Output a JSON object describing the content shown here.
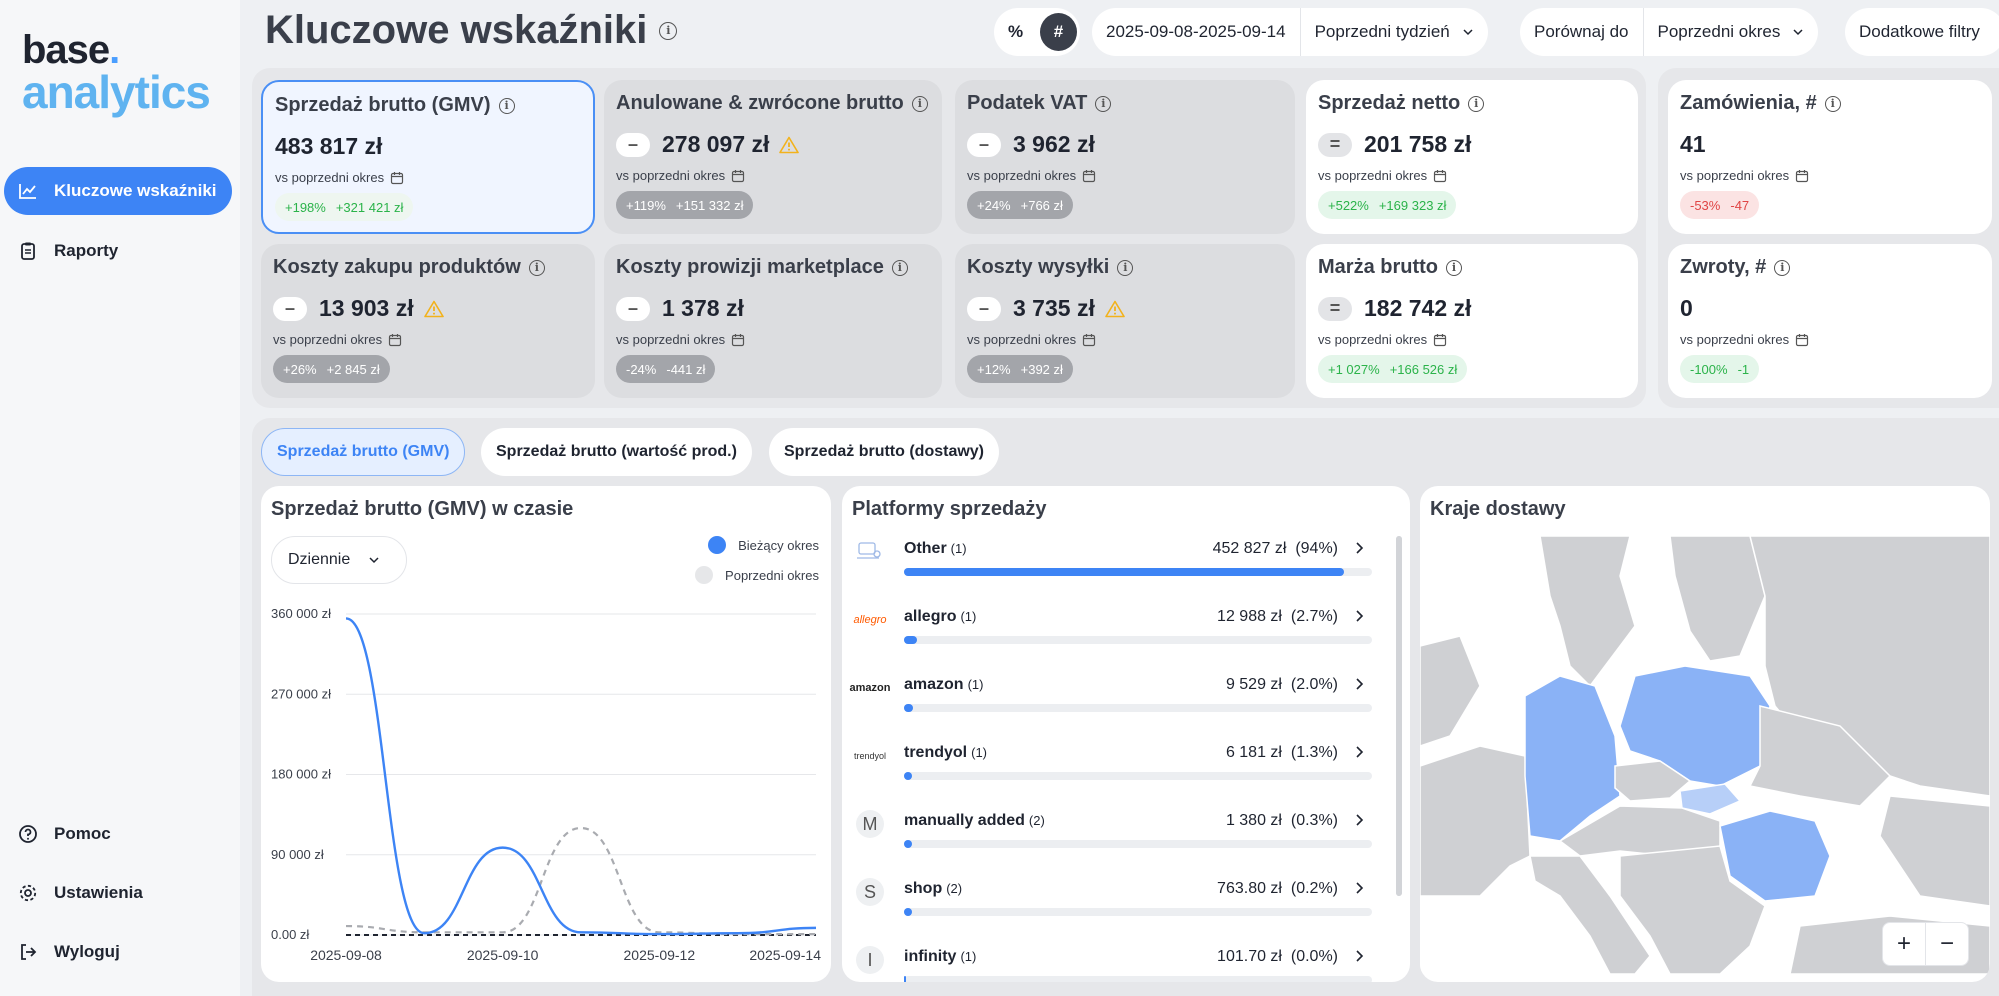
{
  "brand": {
    "line1": "base",
    "dot": ".",
    "line2": "analytics"
  },
  "sidebar": {
    "items": [
      {
        "label": "Kluczowe wskaźniki",
        "icon": "chart-line-icon",
        "active": true
      },
      {
        "label": "Raporty",
        "icon": "clipboard-icon"
      }
    ],
    "bottom": [
      {
        "label": "Pomoc",
        "icon": "help-icon"
      },
      {
        "label": "Ustawienia",
        "icon": "gear-icon"
      },
      {
        "label": "Wyloguj",
        "icon": "logout-icon"
      }
    ]
  },
  "header": {
    "title": "Kluczowe wskaźniki",
    "toggle": {
      "percent": "%",
      "hash": "#",
      "active": "hash"
    },
    "date_range": "2025-09-08-2025-09-14",
    "period": "Poprzedni tydzień",
    "compare_label": "Porównaj do",
    "compare_value": "Poprzedni okres",
    "more_filters": "Dodatkowe filtry"
  },
  "kpis": [
    {
      "title": "Sprzedaż brutto (GMV)",
      "value": "483 817 zł",
      "sign": "",
      "warn": false,
      "sub": "vs poprzedni okres",
      "pct": "+198%",
      "diff": "+321 421 zł",
      "tone": "green",
      "style": "selected"
    },
    {
      "title": "Anulowane & zwrócone brutto",
      "value": "278 097 zł",
      "sign": "–",
      "warn": true,
      "sub": "vs poprzedni okres",
      "pct": "+119%",
      "diff": "+151 332 zł",
      "tone": "grey",
      "style": "grey"
    },
    {
      "title": "Podatek VAT",
      "value": "3 962 zł",
      "sign": "–",
      "warn": false,
      "sub": "vs poprzedni okres",
      "pct": "+24%",
      "diff": "+766 zł",
      "tone": "grey",
      "style": "grey"
    },
    {
      "title": "Sprzedaż netto",
      "value": "201 758 zł",
      "sign": "=",
      "warn": false,
      "sub": "vs poprzedni okres",
      "pct": "+522%",
      "diff": "+169 323 zł",
      "tone": "green",
      "style": "white"
    },
    {
      "title": "Zamówienia, #",
      "value": "41",
      "sign": "",
      "warn": false,
      "sub": "vs poprzedni okres",
      "pct": "-53%",
      "diff": "-47",
      "tone": "red",
      "style": "white"
    },
    {
      "title": "Koszty zakupu produktów",
      "value": "13 903 zł",
      "sign": "–",
      "warn": true,
      "sub": "vs poprzedni okres",
      "pct": "+26%",
      "diff": "+2 845 zł",
      "tone": "grey",
      "style": "grey"
    },
    {
      "title": "Koszty prowizji marketplace",
      "value": "1 378 zł",
      "sign": "–",
      "warn": false,
      "sub": "vs poprzedni okres",
      "pct": "-24%",
      "diff": "-441 zł",
      "tone": "grey",
      "style": "grey"
    },
    {
      "title": "Koszty wysyłki",
      "value": "3 735 zł",
      "sign": "–",
      "warn": true,
      "sub": "vs poprzedni okres",
      "pct": "+12%",
      "diff": "+392 zł",
      "tone": "grey",
      "style": "grey"
    },
    {
      "title": "Marża brutto",
      "value": "182 742 zł",
      "sign": "=",
      "warn": false,
      "sub": "vs poprzedni okres",
      "pct": "+1 027%",
      "diff": "+166 526 zł",
      "tone": "green",
      "style": "white"
    },
    {
      "title": "Zwroty, #",
      "value": "0",
      "sign": "",
      "warn": false,
      "sub": "vs poprzedni okres",
      "pct": "-100%",
      "diff": "-1",
      "tone": "green",
      "style": "white"
    }
  ],
  "tabs": [
    {
      "label": "Sprzedaż brutto (GMV)",
      "active": true
    },
    {
      "label": "Sprzedaż brutto (wartość prod.)"
    },
    {
      "label": "Sprzedaż brutto (dostawy)"
    }
  ],
  "gmv_chart": {
    "title": "Sprzedaż brutto (GMV) w czasie",
    "granularity": "Dziennie",
    "legend": {
      "current": "Bieżący okres",
      "previous": "Poprzedni okres"
    },
    "colors": {
      "current": "#3d84f5",
      "previous": "#a9abb0"
    }
  },
  "chart_data": {
    "type": "line",
    "x": [
      "2025-09-08",
      "2025-09-09",
      "2025-09-10",
      "2025-09-11",
      "2025-09-12",
      "2025-09-13",
      "2025-09-14"
    ],
    "x_ticks": [
      "2025-09-08",
      "2025-09-10",
      "2025-09-12",
      "2025-09-14"
    ],
    "y_ticks": [
      "360 000 zł",
      "270 000 zł",
      "180 000 zł",
      "90 000 zł",
      "0.00 zł"
    ],
    "ylim": [
      0,
      360000
    ],
    "grid": true,
    "legend_position": "top-right",
    "series": [
      {
        "name": "Bieżący okres",
        "values": [
          355000,
          2000,
          98000,
          3000,
          1000,
          2000,
          8000
        ]
      },
      {
        "name": "Poprzedni okres",
        "values": [
          10000,
          3000,
          3000,
          120000,
          3000,
          1000,
          1000
        ]
      }
    ]
  },
  "platforms": {
    "title": "Platformy sprzedaży",
    "rows": [
      {
        "name": "Other",
        "count": "(1)",
        "value": "452 827 zł",
        "pct": "(94%)",
        "share": 0.94,
        "icon": "other-platform-icon",
        "glyph": ""
      },
      {
        "name": "allegro",
        "count": "(1)",
        "value": "12 988 zł",
        "pct": "(2.7%)",
        "share": 0.027,
        "icon": "allegro-logo",
        "glyph": "allegro"
      },
      {
        "name": "amazon",
        "count": "(1)",
        "value": "9 529 zł",
        "pct": "(2.0%)",
        "share": 0.02,
        "icon": "amazon-logo",
        "glyph": "amazon"
      },
      {
        "name": "trendyol",
        "count": "(1)",
        "value": "6 181 zł",
        "pct": "(1.3%)",
        "share": 0.013,
        "icon": "trendyol-logo",
        "glyph": "trendyol"
      },
      {
        "name": "manually added",
        "count": "(2)",
        "value": "1 380 zł",
        "pct": "(0.3%)",
        "share": 0.003,
        "icon": "letter-m-icon",
        "glyph": "M"
      },
      {
        "name": "shop",
        "count": "(2)",
        "value": "763.80 zł",
        "pct": "(0.2%)",
        "share": 0.002,
        "icon": "letter-s-icon",
        "glyph": "S"
      },
      {
        "name": "infinity",
        "count": "(1)",
        "value": "101.70 zł",
        "pct": "(0.0%)",
        "share": 0.0,
        "icon": "letter-i-icon",
        "glyph": "I"
      }
    ]
  },
  "map": {
    "title": "Kraje dostawy",
    "zoom_in": "+",
    "zoom_out": "−",
    "colors": {
      "land": "#cfd0d3",
      "highlight": "#8ab2f6",
      "light": "#b7cff8",
      "sea": "#ffffff"
    }
  }
}
